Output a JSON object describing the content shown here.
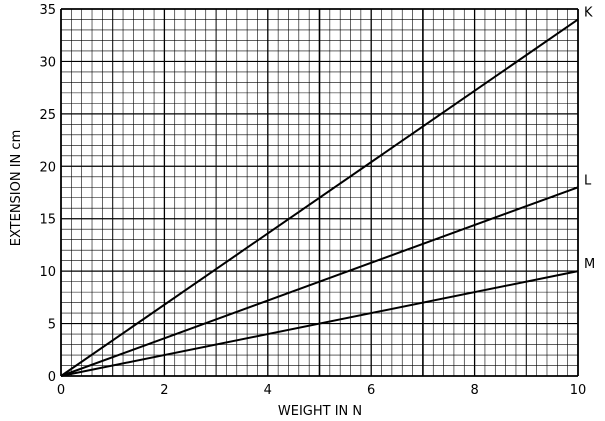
{
  "chart_data": {
    "type": "line",
    "xlabel": "WEIGHT  IN  N",
    "ylabel": "EXTENSION  IN  cm",
    "xlim": [
      0,
      10
    ],
    "ylim": [
      0,
      35
    ],
    "xticks": [
      "0",
      "2",
      "4",
      "6",
      "8",
      "10"
    ],
    "yticks": [
      "0",
      "5",
      "10",
      "15",
      "20",
      "25",
      "30",
      "35"
    ],
    "grid": true,
    "legend": "none",
    "series": [
      {
        "name": "K",
        "x": [
          0,
          10
        ],
        "y": [
          0,
          34
        ]
      },
      {
        "name": "L",
        "x": [
          0,
          10
        ],
        "y": [
          0,
          18
        ]
      },
      {
        "name": "M",
        "x": [
          0,
          10
        ],
        "y": [
          0,
          10
        ]
      }
    ]
  },
  "colors": {
    "line": "#000000",
    "grid": "#000000",
    "background": "#ffffff"
  }
}
